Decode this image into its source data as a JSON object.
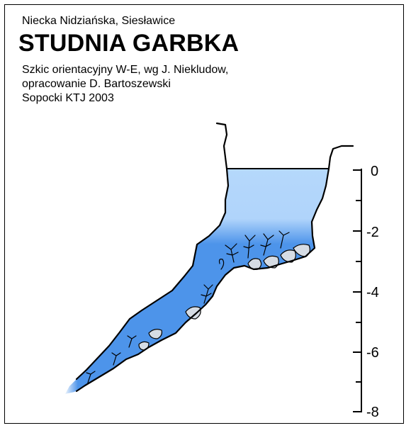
{
  "header": {
    "region": "Niecka Nidziańska, Siesławice",
    "title": "STUDNIA GARBKA",
    "subtitle_lines": [
      "Szkic orientacyjny W-E, wg J. Niekludow,",
      "opracowanie D. Bartoszewski",
      "Sopocki KTJ 2003"
    ]
  },
  "scale": {
    "unit": "m",
    "ticks": [
      "0",
      "-2",
      "-4",
      "-6",
      "-8"
    ]
  },
  "colors": {
    "water_light": "#b5d8fb",
    "water_deep": "#4d94ea",
    "rock": "#d6dce4",
    "outline": "#000000"
  }
}
